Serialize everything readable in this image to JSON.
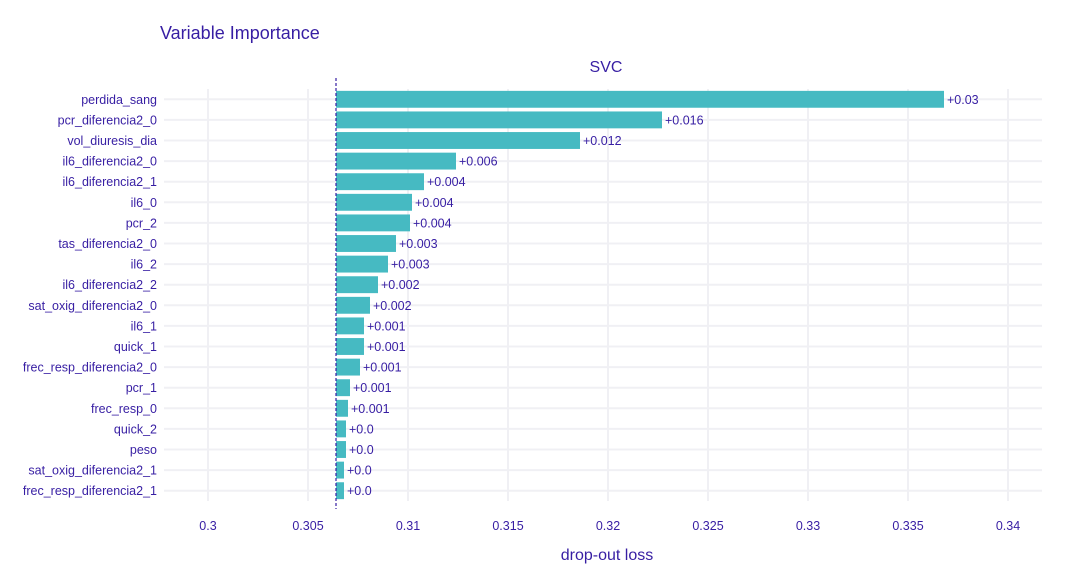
{
  "chart_data": {
    "type": "bar",
    "orientation": "horizontal",
    "title": "Variable Importance",
    "subtitle": "SVC",
    "xlabel": "drop-out loss",
    "ylabel": "",
    "baseline": 0.3064,
    "xlim": [
      0.2978,
      0.3417
    ],
    "xticks": [
      0.3,
      0.305,
      0.31,
      0.315,
      0.32,
      0.325,
      0.33,
      0.335,
      0.34
    ],
    "xtick_labels": [
      "0.3",
      "0.305",
      "0.31",
      "0.315",
      "0.32",
      "0.325",
      "0.33",
      "0.335",
      "0.34"
    ],
    "grid": true,
    "bar_color": "#46bac2",
    "baseline_color": "#371ea3",
    "categories": [
      "perdida_sang",
      "pcr_diferencia2_0",
      "vol_diuresis_dia",
      "il6_diferencia2_0",
      "il6_diferencia2_1",
      "il6_0",
      "pcr_2",
      "tas_diferencia2_0",
      "il6_2",
      "il6_diferencia2_2",
      "sat_oxig_diferencia2_0",
      "il6_1",
      "quick_1",
      "frec_resp_diferencia2_0",
      "pcr_1",
      "frec_resp_0",
      "quick_2",
      "peso",
      "sat_oxig_diferencia2_1",
      "frec_resp_diferencia2_1"
    ],
    "values": [
      0.3368,
      0.3227,
      0.3186,
      0.3124,
      0.3108,
      0.3102,
      0.3101,
      0.3094,
      0.309,
      0.3085,
      0.3081,
      0.3078,
      0.3078,
      0.3076,
      0.3071,
      0.307,
      0.3069,
      0.3069,
      0.3068,
      0.3068
    ],
    "data_labels": [
      "+0.03",
      "+0.016",
      "+0.012",
      "+0.006",
      "+0.004",
      "+0.004",
      "+0.004",
      "+0.003",
      "+0.003",
      "+0.002",
      "+0.002",
      "+0.001",
      "+0.001",
      "+0.001",
      "+0.001",
      "+0.001",
      "+0.0",
      "+0.0",
      "+0.0",
      "+0.0"
    ]
  }
}
